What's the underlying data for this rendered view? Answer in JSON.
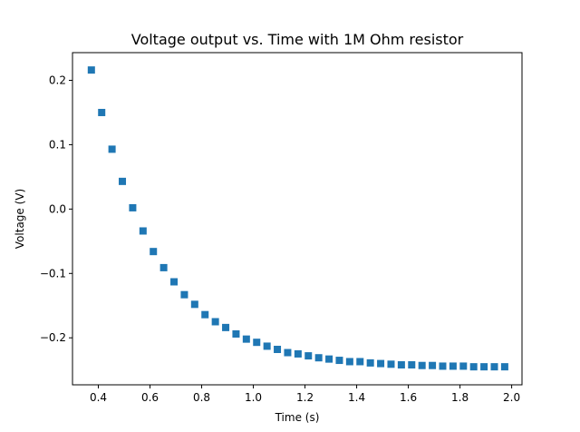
{
  "chart_data": {
    "type": "scatter",
    "title": "Voltage output vs. Time with 1M Ohm resistor",
    "xlabel": "Time (s)",
    "ylabel": "Voltage (V)",
    "xlim": [
      0.3,
      2.04
    ],
    "ylim": [
      -0.273,
      0.243
    ],
    "xticks": [
      0.4,
      0.6,
      0.8,
      1.0,
      1.2,
      1.4,
      1.6,
      1.8,
      2.0
    ],
    "xtick_labels": [
      "0.4",
      "0.6",
      "0.8",
      "1.0",
      "1.2",
      "1.4",
      "1.6",
      "1.8",
      "2.0"
    ],
    "yticks": [
      -0.2,
      -0.1,
      0.0,
      0.1,
      0.2
    ],
    "ytick_labels": [
      "−0.2",
      "−0.1",
      "0.0",
      "0.1",
      "0.2"
    ],
    "grid": false,
    "legend": "none",
    "marker": "square",
    "color": "#1f77b4",
    "series": [
      {
        "x": [
          0.373,
          0.413,
          0.453,
          0.493,
          0.533,
          0.573,
          0.613,
          0.653,
          0.693,
          0.733,
          0.773,
          0.813,
          0.853,
          0.893,
          0.933,
          0.973,
          1.013,
          1.053,
          1.093,
          1.133,
          1.173,
          1.213,
          1.253,
          1.293,
          1.333,
          1.373,
          1.413,
          1.453,
          1.493,
          1.533,
          1.573,
          1.613,
          1.653,
          1.693,
          1.733,
          1.773,
          1.813,
          1.853,
          1.893,
          1.933,
          1.973
        ],
        "y": [
          0.216,
          0.15,
          0.093,
          0.043,
          0.002,
          -0.034,
          -0.066,
          -0.091,
          -0.113,
          -0.133,
          -0.148,
          -0.164,
          -0.175,
          -0.184,
          -0.194,
          -0.202,
          -0.207,
          -0.213,
          -0.218,
          -0.223,
          -0.225,
          -0.228,
          -0.231,
          -0.233,
          -0.235,
          -0.237,
          -0.237,
          -0.239,
          -0.24,
          -0.241,
          -0.242,
          -0.242,
          -0.243,
          -0.243,
          -0.244,
          -0.244,
          -0.244,
          -0.245,
          -0.245,
          -0.245,
          -0.245
        ]
      }
    ]
  }
}
